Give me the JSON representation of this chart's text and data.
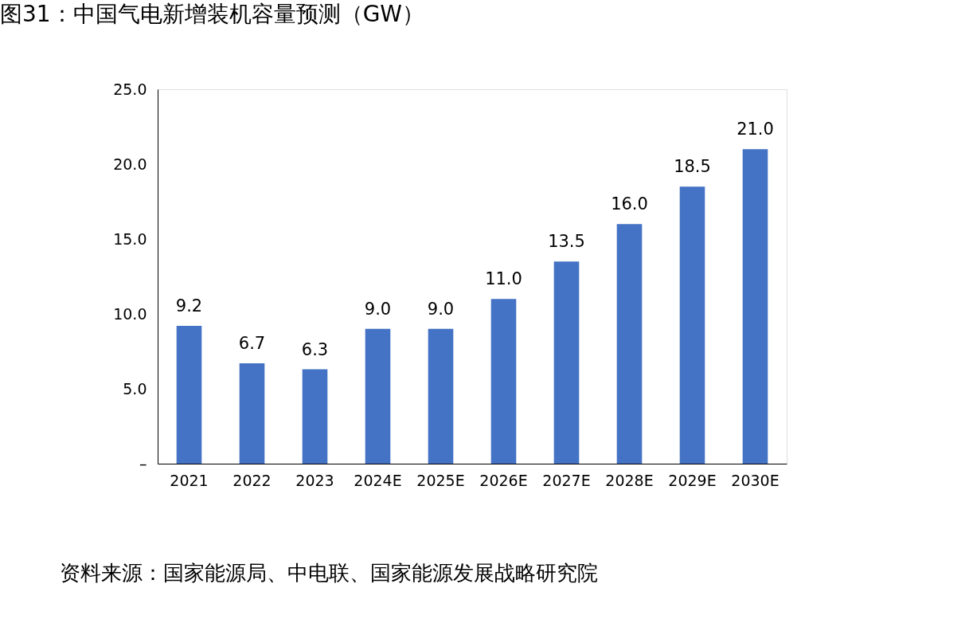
{
  "chart_data": {
    "type": "bar",
    "title": "图31：中国气电新增装机容量预测（GW）",
    "categories": [
      "2021",
      "2022",
      "2023",
      "2024E",
      "2025E",
      "2026E",
      "2027E",
      "2028E",
      "2029E",
      "2030E"
    ],
    "values": [
      9.2,
      6.7,
      6.3,
      9.0,
      9.0,
      11.0,
      13.5,
      16.0,
      18.5,
      21.0
    ],
    "value_labels": [
      "9.2",
      "6.7",
      "6.3",
      "9.0",
      "9.0",
      "11.0",
      "13.5",
      "16.0",
      "18.5",
      "21.0"
    ],
    "color": "#4472c4",
    "ylim": [
      0,
      25
    ],
    "yticks": [
      {
        "value": 0,
        "label": "–"
      },
      {
        "value": 5,
        "label": "5.0"
      },
      {
        "value": 10,
        "label": "10.0"
      },
      {
        "value": 15,
        "label": "15.0"
      },
      {
        "value": 20,
        "label": "20.0"
      },
      {
        "value": 25,
        "label": "25.0"
      }
    ],
    "grid": false,
    "annotations": [
      "资料来源：国家能源局、中电联、国家能源发展战略研究院"
    ]
  }
}
